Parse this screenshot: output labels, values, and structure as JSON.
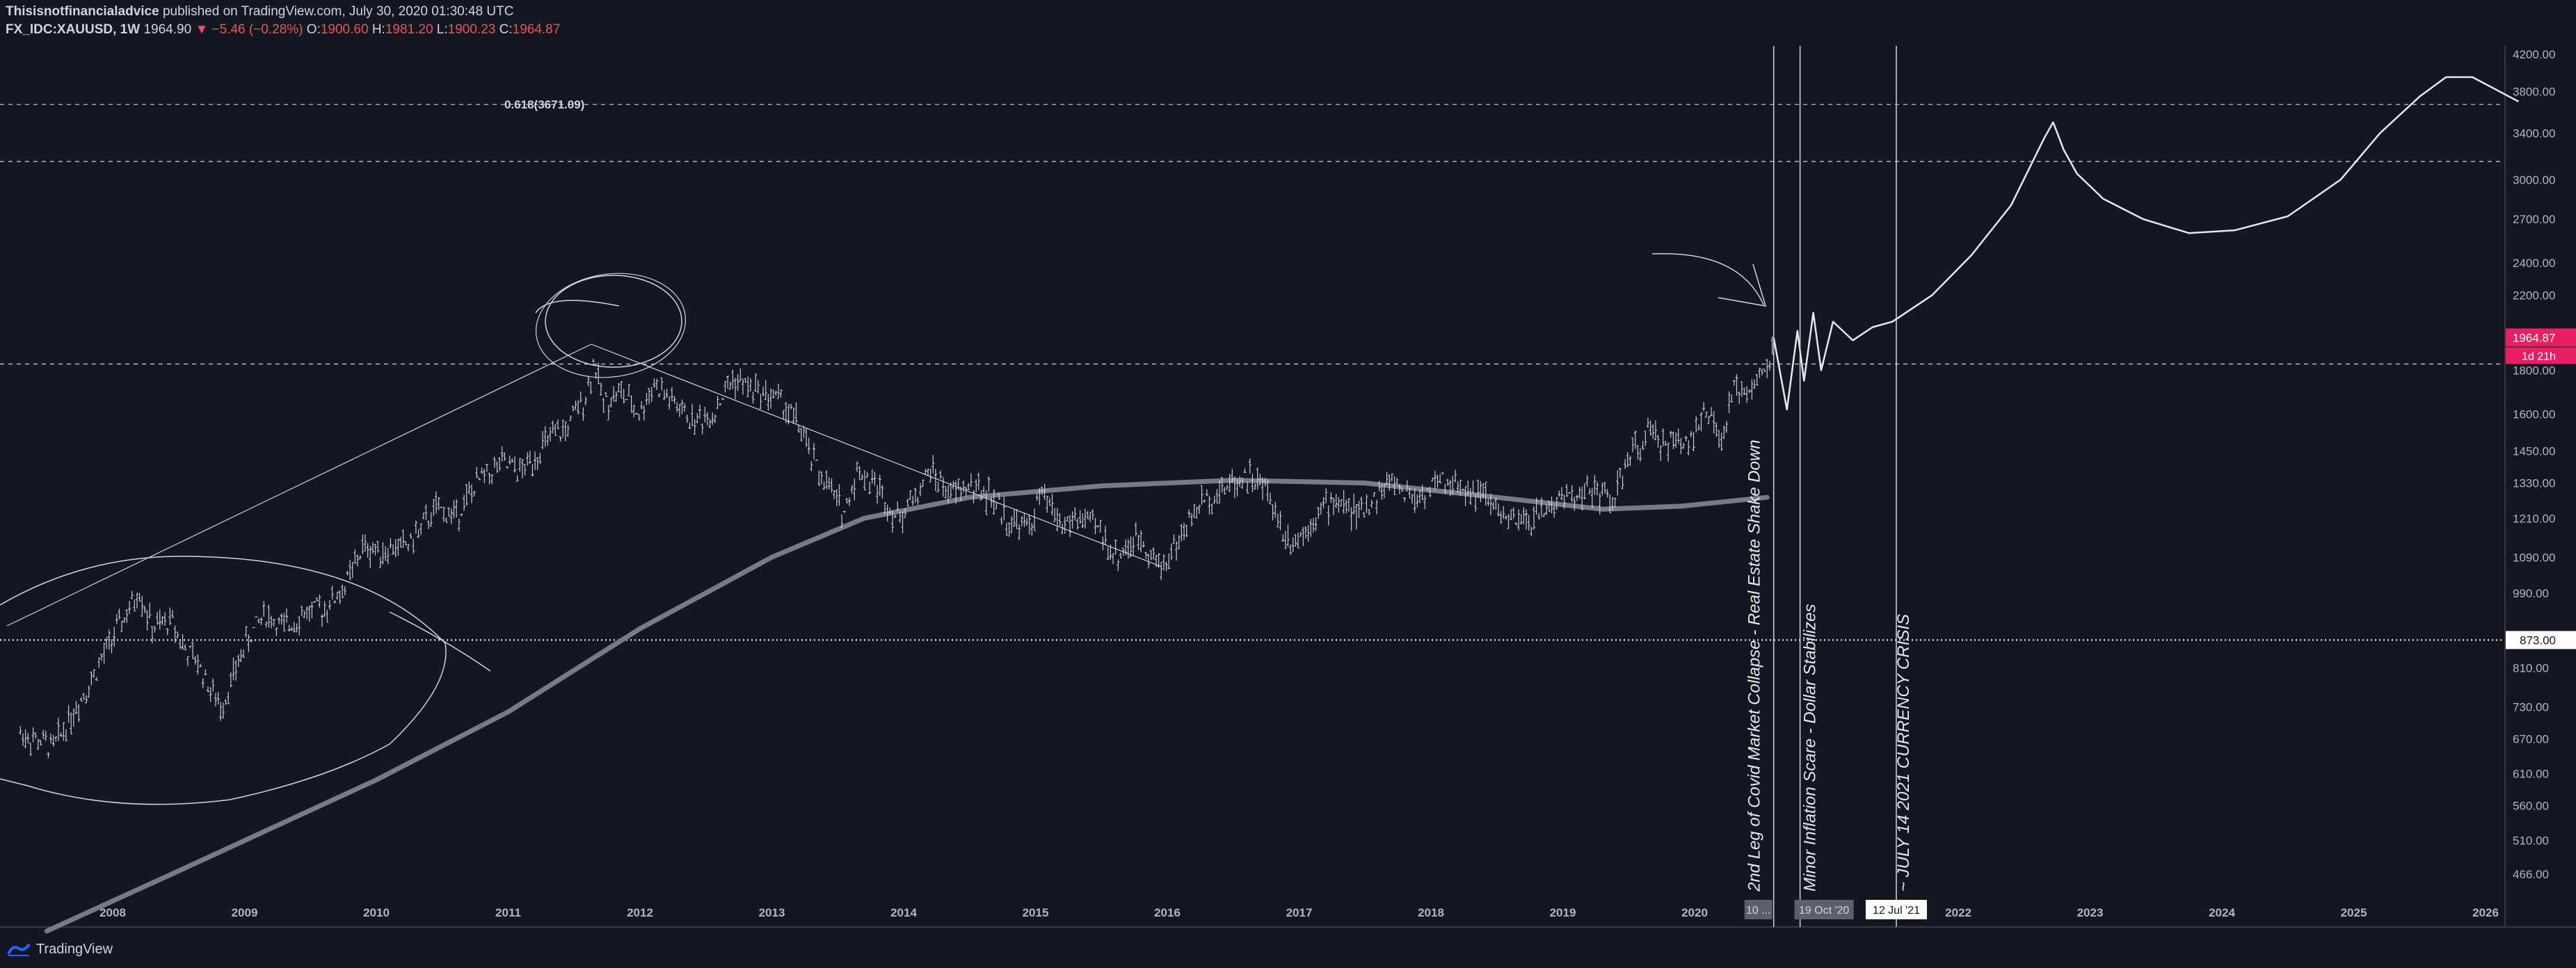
{
  "header": {
    "author": "Thisisnotfinancialadvice",
    "published": "published on TradingView.com, July 30, 2020 01:30:48 UTC",
    "symbol": "FX_IDC:XAUUSD, 1W",
    "last": "1964.90",
    "change": "−5.46 (−0.28%)",
    "open_label": "O:",
    "open": "1900.60",
    "high_label": "H:",
    "high": "1981.20",
    "low_label": "L:",
    "low": "1900.23",
    "close_label": "C:",
    "close": "1964.87"
  },
  "brand": "TradingView",
  "colors": {
    "background": "#131722",
    "text": "#d1d4dc",
    "price_badge": "#e91e63",
    "negative": "#ef5350",
    "bar": "#c8cad2"
  },
  "chart_data": {
    "type": "bar",
    "symbol": "FX_IDC:XAUUSD",
    "interval": "1W",
    "scale": "log",
    "ylim": [
      400,
      4200
    ],
    "xlim": [
      2007.25,
      2026.25
    ],
    "y_ticks": [
      "4200.00",
      "3800.00",
      "3400.00",
      "3000.00",
      "2700.00",
      "2400.00",
      "2200.00",
      "1800.00",
      "1600.00",
      "1450.00",
      "1330.00",
      "1210.00",
      "1090.00",
      "990.00",
      "810.00",
      "730.00",
      "670.00",
      "610.00",
      "560.00",
      "510.00",
      "466.00"
    ],
    "x_ticks": [
      "2008",
      "2009",
      "2010",
      "2011",
      "2012",
      "2013",
      "2014",
      "2015",
      "2016",
      "2017",
      "2018",
      "2019",
      "2020",
      "2021",
      "2022",
      "2023",
      "2024",
      "2025",
      "2026"
    ],
    "price_path": [
      [
        2007.3,
        680
      ],
      [
        2007.55,
        655
      ],
      [
        2007.7,
        720
      ],
      [
        2007.85,
        790
      ],
      [
        2008.0,
        880
      ],
      [
        2008.15,
        960
      ],
      [
        2008.2,
        1000
      ],
      [
        2008.3,
        900
      ],
      [
        2008.45,
        920
      ],
      [
        2008.55,
        850
      ],
      [
        2008.65,
        820
      ],
      [
        2008.75,
        760
      ],
      [
        2008.82,
        730
      ],
      [
        2008.9,
        780
      ],
      [
        2009.0,
        860
      ],
      [
        2009.15,
        940
      ],
      [
        2009.3,
        900
      ],
      [
        2009.45,
        940
      ],
      [
        2009.6,
        950
      ],
      [
        2009.75,
        1000
      ],
      [
        2009.9,
        1120
      ],
      [
        2010.05,
        1110
      ],
      [
        2010.25,
        1130
      ],
      [
        2010.45,
        1240
      ],
      [
        2010.6,
        1220
      ],
      [
        2010.8,
        1350
      ],
      [
        2010.95,
        1400
      ],
      [
        2011.1,
        1370
      ],
      [
        2011.3,
        1490
      ],
      [
        2011.45,
        1540
      ],
      [
        2011.6,
        1700
      ],
      [
        2011.65,
        1850
      ],
      [
        2011.72,
        1650
      ],
      [
        2011.85,
        1700
      ],
      [
        2012.0,
        1600
      ],
      [
        2012.1,
        1740
      ],
      [
        2012.25,
        1650
      ],
      [
        2012.4,
        1570
      ],
      [
        2012.55,
        1600
      ],
      [
        2012.7,
        1760
      ],
      [
        2012.9,
        1700
      ],
      [
        2013.05,
        1670
      ],
      [
        2013.2,
        1560
      ],
      [
        2013.3,
        1420
      ],
      [
        2013.45,
        1300
      ],
      [
        2013.55,
        1230
      ],
      [
        2013.65,
        1380
      ],
      [
        2013.8,
        1320
      ],
      [
        2013.95,
        1210
      ],
      [
        2014.1,
        1290
      ],
      [
        2014.2,
        1380
      ],
      [
        2014.35,
        1290
      ],
      [
        2014.5,
        1320
      ],
      [
        2014.65,
        1290
      ],
      [
        2014.8,
        1200
      ],
      [
        2014.95,
        1180
      ],
      [
        2015.05,
        1290
      ],
      [
        2015.2,
        1190
      ],
      [
        2015.35,
        1210
      ],
      [
        2015.5,
        1170
      ],
      [
        2015.6,
        1090
      ],
      [
        2015.8,
        1150
      ],
      [
        2015.95,
        1060
      ],
      [
        2016.1,
        1150
      ],
      [
        2016.25,
        1260
      ],
      [
        2016.45,
        1320
      ],
      [
        2016.6,
        1360
      ],
      [
        2016.75,
        1310
      ],
      [
        2016.9,
        1150
      ],
      [
        2017.0,
        1150
      ],
      [
        2017.15,
        1240
      ],
      [
        2017.3,
        1270
      ],
      [
        2017.45,
        1220
      ],
      [
        2017.6,
        1290
      ],
      [
        2017.7,
        1340
      ],
      [
        2017.85,
        1280
      ],
      [
        2017.95,
        1290
      ],
      [
        2018.05,
        1340
      ],
      [
        2018.2,
        1320
      ],
      [
        2018.35,
        1300
      ],
      [
        2018.5,
        1240
      ],
      [
        2018.62,
        1190
      ],
      [
        2018.75,
        1200
      ],
      [
        2018.9,
        1250
      ],
      [
        2019.05,
        1290
      ],
      [
        2019.2,
        1300
      ],
      [
        2019.4,
        1280
      ],
      [
        2019.5,
        1420
      ],
      [
        2019.65,
        1520
      ],
      [
        2019.8,
        1480
      ],
      [
        2019.95,
        1500
      ],
      [
        2020.1,
        1600
      ],
      [
        2020.2,
        1480
      ],
      [
        2020.3,
        1700
      ],
      [
        2020.45,
        1730
      ],
      [
        2020.55,
        1800
      ],
      [
        2020.6,
        1964
      ]
    ],
    "moving_average": [
      [
        2007.5,
        400
      ],
      [
        2008.5,
        470
      ],
      [
        2010.0,
        600
      ],
      [
        2011.0,
        720
      ],
      [
        2012.0,
        900
      ],
      [
        2013.0,
        1090
      ],
      [
        2013.7,
        1210
      ],
      [
        2014.5,
        1280
      ],
      [
        2015.5,
        1320
      ],
      [
        2016.5,
        1340
      ],
      [
        2017.5,
        1330
      ],
      [
        2018.5,
        1280
      ],
      [
        2019.3,
        1240
      ],
      [
        2019.9,
        1250
      ],
      [
        2020.55,
        1280
      ]
    ],
    "projection": [
      [
        2020.6,
        1964
      ],
      [
        2020.7,
        1620
      ],
      [
        2020.78,
        2000
      ],
      [
        2020.83,
        1750
      ],
      [
        2020.9,
        2100
      ],
      [
        2020.96,
        1800
      ],
      [
        2021.05,
        2050
      ],
      [
        2021.2,
        1950
      ],
      [
        2021.35,
        2020
      ],
      [
        2021.5,
        2050
      ],
      [
        2021.8,
        2200
      ],
      [
        2022.1,
        2450
      ],
      [
        2022.4,
        2800
      ],
      [
        2022.65,
        3350
      ],
      [
        2022.72,
        3500
      ],
      [
        2022.8,
        3250
      ],
      [
        2022.9,
        3050
      ],
      [
        2023.1,
        2850
      ],
      [
        2023.4,
        2700
      ],
      [
        2023.75,
        2600
      ],
      [
        2024.1,
        2620
      ],
      [
        2024.5,
        2720
      ],
      [
        2024.9,
        3000
      ],
      [
        2025.2,
        3400
      ],
      [
        2025.5,
        3750
      ],
      [
        2025.7,
        3950
      ],
      [
        2025.9,
        3950
      ],
      [
        2026.25,
        3700
      ]
    ],
    "levels": [
      {
        "label": "0.618(3671.09)",
        "value": 3671.09,
        "style": "dashed"
      },
      {
        "value": 3150,
        "style": "dashed"
      },
      {
        "value": 1830,
        "style": "dashed"
      },
      {
        "value": 873.0,
        "label": "873.00",
        "style": "dotted"
      }
    ],
    "current_price": "1964.87",
    "countdown": "1d 21h",
    "vertical_markers": [
      {
        "x": 2020.6,
        "date_label": "10 ..."
      },
      {
        "x": 2020.8,
        "date_label": "19 Oct '20"
      },
      {
        "x": 2021.53,
        "date_label": "12 Jul '21"
      }
    ],
    "annotations": [
      "2nd Leg of Covid Market Collapse - Real Estate Shake Down",
      "Minor Inflation Scare - Dollar Stabilizes",
      "~ JULY 14 2021 CURRENCY CRISIS"
    ]
  }
}
